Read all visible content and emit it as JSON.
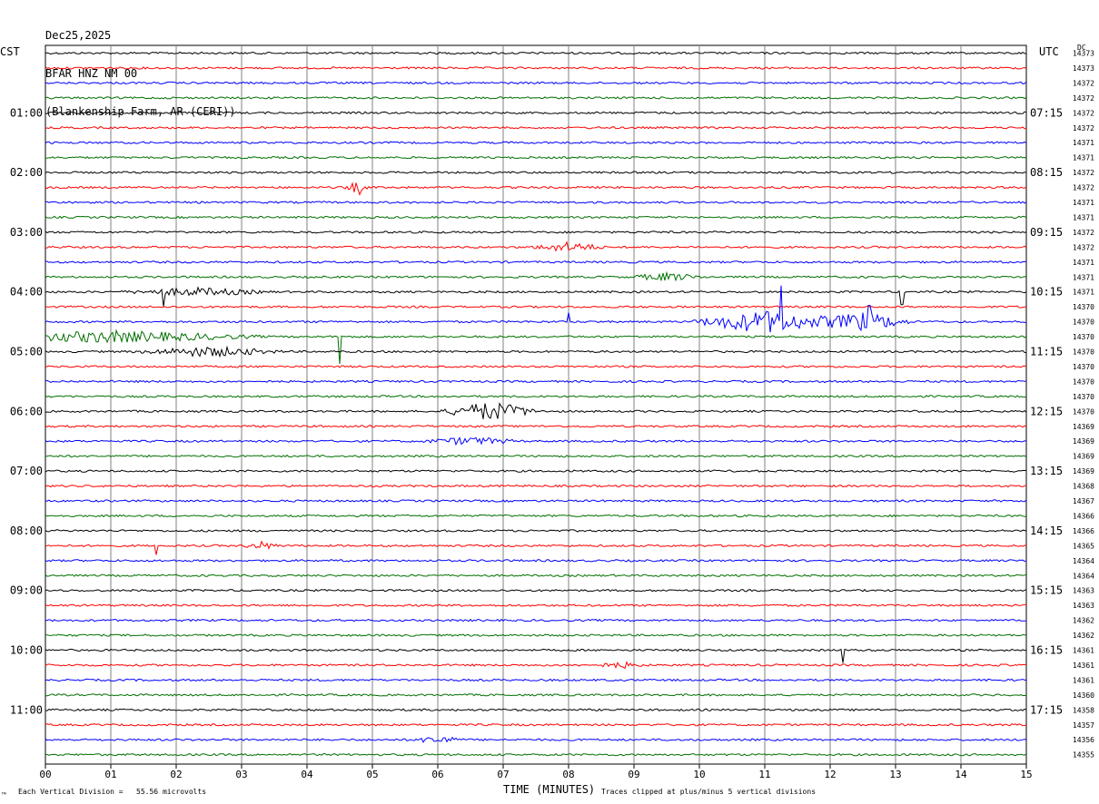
{
  "header": {
    "date": "Dec25,2025",
    "station": "BFAR HNZ NM 00",
    "site": "(Blankenship Farm, AR (CERI))"
  },
  "left_zone": "CST",
  "right_zone": "UTC",
  "dc_label": "DC",
  "footer": {
    "scale_note": "Each Vertical Division =   55.56 microvolts",
    "clip_note": "Traces clipped at plus/minus 5 vertical divisions",
    "corner_mark": "™"
  },
  "chart_data": {
    "type": "line",
    "title": "",
    "xlabel": "TIME (MINUTES)",
    "ylabel": "",
    "xlim": [
      0,
      15
    ],
    "x_ticks": [
      "00",
      "01",
      "02",
      "03",
      "04",
      "05",
      "06",
      "07",
      "08",
      "09",
      "10",
      "11",
      "12",
      "13",
      "14",
      "15"
    ],
    "trace_colors": [
      "#000000",
      "#ff0000",
      "#0000ff",
      "#007000"
    ],
    "left_hour_labels": [
      "01:00",
      "02:00",
      "03:00",
      "04:00",
      "05:00",
      "06:00",
      "07:00",
      "08:00",
      "09:00",
      "10:00",
      "11:00"
    ],
    "right_hour_labels": [
      "07:15",
      "08:15",
      "09:15",
      "10:15",
      "11:15",
      "12:15",
      "13:15",
      "14:15",
      "15:15",
      "16:15",
      "17:15"
    ],
    "dc_offsets": [
      14373,
      14373,
      14372,
      14372,
      14372,
      14372,
      14371,
      14371,
      14372,
      14372,
      14371,
      14371,
      14372,
      14372,
      14371,
      14371,
      14371,
      14370,
      14370,
      14370,
      14370,
      14370,
      14370,
      14370,
      14370,
      14369,
      14369,
      14369,
      14369,
      14368,
      14367,
      14366,
      14366,
      14365,
      14364,
      14364,
      14363,
      14363,
      14362,
      14362,
      14361,
      14361,
      14361,
      14360,
      14358,
      14357,
      14356,
      14355
    ],
    "events": [
      {
        "trace": 9,
        "minute": 4.75,
        "amp": 5,
        "width": 0.2
      },
      {
        "trace": 13,
        "minute": 8.0,
        "amp": 5,
        "width": 0.6
      },
      {
        "trace": 15,
        "minute": 9.5,
        "amp": 4,
        "width": 0.6
      },
      {
        "trace": 16,
        "minute": 2.3,
        "amp": 4,
        "width": 1.2
      },
      {
        "trace": 18,
        "minute": 11.0,
        "amp": 12,
        "width": 1.2
      },
      {
        "trace": 18,
        "minute": 12.5,
        "amp": 10,
        "width": 0.8
      },
      {
        "trace": 19,
        "minute": 1.0,
        "amp": 6,
        "width": 2.5
      },
      {
        "trace": 20,
        "minute": 2.5,
        "amp": 5,
        "width": 1.2
      },
      {
        "trace": 24,
        "minute": 6.8,
        "amp": 10,
        "width": 0.8
      },
      {
        "trace": 26,
        "minute": 6.5,
        "amp": 4,
        "width": 0.8
      },
      {
        "trace": 33,
        "minute": 3.3,
        "amp": 4,
        "width": 0.3
      },
      {
        "trace": 41,
        "minute": 8.8,
        "amp": 3,
        "width": 0.4
      },
      {
        "trace": 46,
        "minute": 6.0,
        "amp": 4,
        "width": 0.4
      }
    ],
    "spikes": [
      {
        "trace": 18,
        "minute": 11.25,
        "amp": 40
      },
      {
        "trace": 18,
        "minute": 12.6,
        "amp": 18
      },
      {
        "trace": 18,
        "minute": 8.0,
        "amp": 10
      },
      {
        "trace": 19,
        "minute": 4.5,
        "amp": 30
      },
      {
        "trace": 16,
        "minute": 1.8,
        "amp": 16
      },
      {
        "trace": 16,
        "minute": 13.1,
        "amp": 14
      },
      {
        "trace": 40,
        "minute": 12.2,
        "amp": 14
      },
      {
        "trace": 33,
        "minute": 1.7,
        "amp": 10
      },
      {
        "trace": 9,
        "minute": 4.8,
        "amp": 8
      }
    ]
  }
}
